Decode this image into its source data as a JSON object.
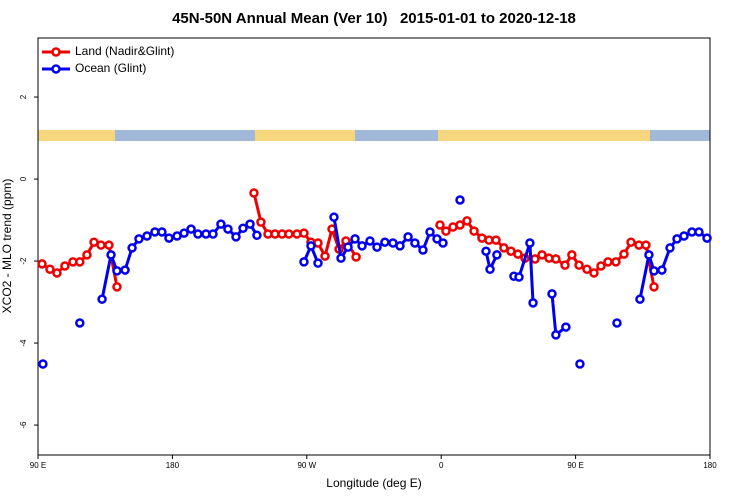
{
  "chart_data": {
    "type": "line",
    "title": "45N-50N Annual Mean (Ver 10)   2015-01-01 to 2020-12-18",
    "xlabel": "Longitude (deg E)",
    "ylabel": "XCO2 - MLO trend (ppm)",
    "xlim": [
      90,
      540
    ],
    "ylim": [
      -6.73,
      3.44
    ],
    "xticks": [
      {
        "value": 90,
        "label": "90 E"
      },
      180,
      {
        "value": 270,
        "label": "90 W"
      },
      {
        "value": 360,
        "label": "0"
      },
      {
        "value": 450,
        "label": "90 E"
      },
      {
        "value": 540,
        "label": "180"
      }
    ],
    "yticks": [
      -6,
      -4,
      -2,
      0,
      2
    ],
    "legend": "upper left",
    "series": [
      {
        "name": "Land (Nadir&Glint)",
        "color": "#ee0000",
        "x": [
          92.7,
          98,
          102.7,
          108,
          113.4,
          118,
          122.8,
          127.5,
          132.2,
          137.5,
          142.9,
          null,
          234.6,
          239.3,
          244,
          248.7,
          253.4,
          258,
          263.4,
          268.1,
          272.8,
          277.5,
          282.2,
          286.9,
          291.6,
          296.2,
          303,
          null,
          359.2,
          363.2,
          367.9,
          372.6,
          377.3,
          382,
          387.3,
          392,
          396.7,
          402,
          406.7,
          411.4,
          416.1,
          422.8,
          427.5,
          432.2,
          436.8,
          442.9,
          447.5,
          452.3,
          457.6,
          462.3,
          467,
          471.7,
          477,
          482.4,
          487.1,
          492.4,
          497.1,
          502.5
        ],
        "values": [
          -2.07,
          -2.2,
          -2.29,
          -2.12,
          -2.02,
          -2.02,
          -1.85,
          -1.54,
          -1.61,
          -1.61,
          -2.63,
          null,
          -0.34,
          -1.05,
          -1.34,
          -1.34,
          -1.34,
          -1.34,
          -1.34,
          -1.32,
          -1.54,
          -1.56,
          -1.88,
          -1.22,
          -1.71,
          -1.51,
          -1.9,
          null,
          -1.12,
          -1.27,
          -1.17,
          -1.12,
          -1.02,
          -1.27,
          -1.44,
          -1.49,
          -1.49,
          -1.68,
          -1.76,
          -1.83,
          -1.93,
          -1.95,
          -1.85,
          -1.93,
          -1.95,
          -2.1,
          -1.85,
          -2.1,
          -2.2,
          -2.29,
          -2.12,
          -2.02,
          -2.02,
          -1.83,
          -1.54,
          -1.61,
          -1.61,
          -2.63
        ]
      },
      {
        "name": "Ocean (Glint)",
        "color": "#0000ee",
        "x": [
          93.3,
          null,
          118,
          null,
          132.9,
          138.9,
          142.9,
          148.3,
          153,
          157.6,
          163,
          168.3,
          173,
          177.7,
          183.1,
          187.8,
          192.5,
          197.1,
          202.5,
          207.2,
          212.5,
          217.2,
          222.6,
          227.3,
          232,
          236.6,
          null,
          268.1,
          272.8,
          277.5,
          null,
          288.2,
          292.9,
          297.6,
          302.3,
          307,
          312.3,
          317,
          322.3,
          327.7,
          332.4,
          337.8,
          342.4,
          347.8,
          352.5,
          357.2,
          361.2,
          null,
          372.6,
          null,
          390,
          392.7,
          397.3,
          null,
          408.7,
          412.1,
          419.4,
          421.5,
          null,
          434.2,
          436.8,
          443.5,
          null,
          452.9,
          null,
          477.7,
          null,
          493.1,
          499.1,
          502.5,
          507.8,
          513.2,
          517.9,
          522.6,
          527.9,
          532.6,
          538
        ],
        "values": [
          -4.51,
          null,
          -3.51,
          null,
          -2.93,
          -1.85,
          -2.24,
          -2.22,
          -1.68,
          -1.46,
          -1.39,
          -1.29,
          -1.29,
          -1.44,
          -1.39,
          -1.32,
          -1.22,
          -1.34,
          -1.34,
          -1.34,
          -1.1,
          -1.22,
          -1.41,
          -1.2,
          -1.1,
          -1.37,
          null,
          -2.02,
          -1.63,
          -2.05,
          null,
          -0.93,
          -1.93,
          -1.66,
          -1.46,
          -1.63,
          -1.51,
          -1.66,
          -1.54,
          -1.56,
          -1.63,
          -1.41,
          -1.56,
          -1.73,
          -1.29,
          -1.46,
          -1.56,
          null,
          -0.51,
          null,
          -1.76,
          -2.2,
          -1.85,
          null,
          -2.37,
          -2.39,
          -1.56,
          -3.02,
          null,
          -2.8,
          -3.8,
          -3.61,
          null,
          -4.51,
          null,
          -3.51,
          null,
          -2.93,
          -1.85,
          -2.24,
          -2.22,
          -1.68,
          -1.46,
          -1.39,
          -1.29,
          -1.29,
          -1.44
        ]
      }
    ]
  }
}
